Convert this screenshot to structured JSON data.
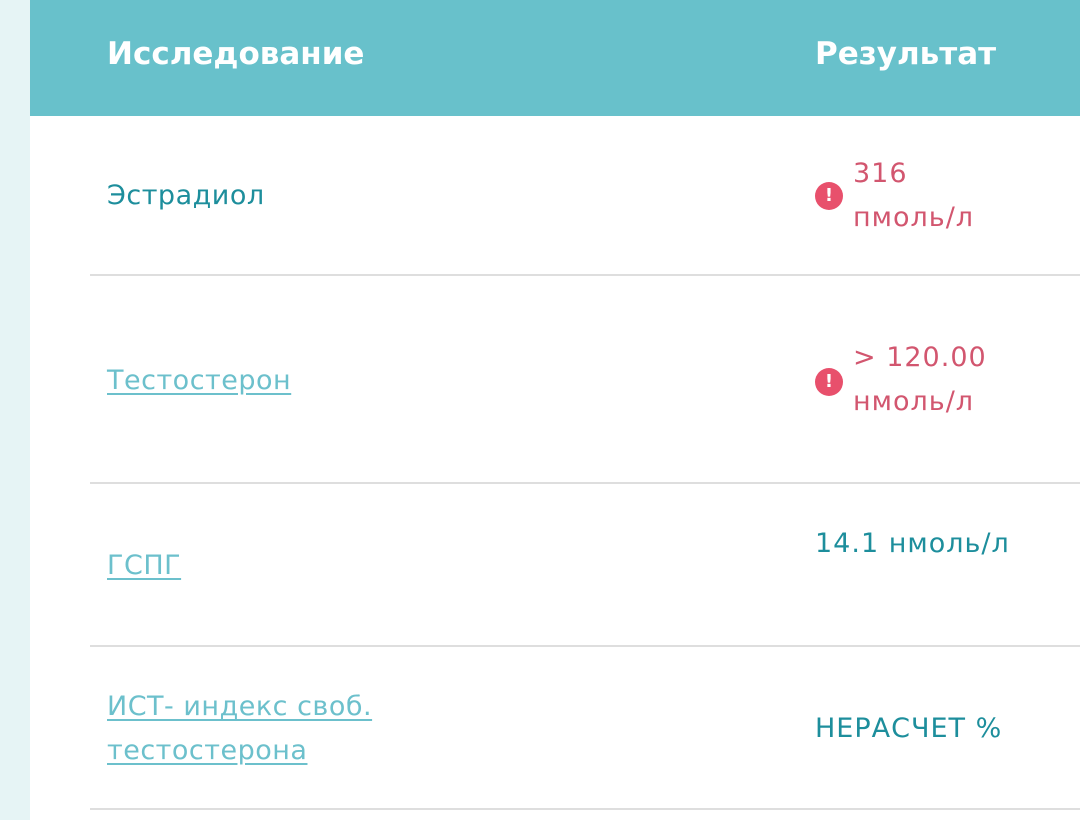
{
  "table": {
    "headers": {
      "study": "Исследование",
      "result": "Результат"
    },
    "rows": [
      {
        "name": "Эстрадиол",
        "link": false,
        "result": "316 пмоль/л",
        "abnormal": true,
        "icon": "alert-icon"
      },
      {
        "name": "Тестостерон",
        "link": true,
        "result": "> 120.00 нмоль/л",
        "abnormal": true,
        "icon": "alert-icon"
      },
      {
        "name": "ГСПГ",
        "link": true,
        "result": "14.1 нмоль/л",
        "abnormal": false
      },
      {
        "name": "ИСТ- индекс своб. тестостерона",
        "link": true,
        "result": "НЕРАСЧЕТ %",
        "abnormal": false
      }
    ]
  },
  "colors": {
    "header": "#68c1cb",
    "text": "#1d8e9c",
    "link": "#6cc0cc",
    "abnormal": "#d2566f",
    "alert": "#e8506c"
  }
}
